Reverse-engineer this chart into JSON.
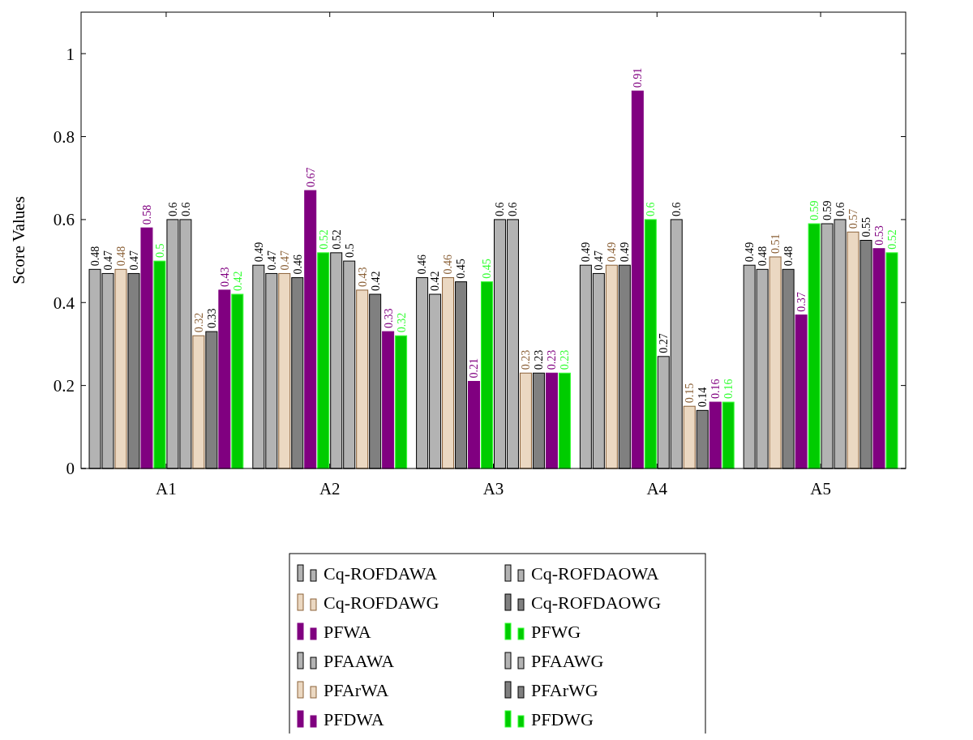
{
  "chart_data": {
    "type": "bar",
    "ylabel": "Score Values",
    "categories": [
      "A1",
      "A2",
      "A3",
      "A4",
      "A5"
    ],
    "ylim": [
      0,
      1.1
    ],
    "yticks": [
      0,
      0.2,
      0.4,
      0.6,
      0.8,
      1
    ],
    "grid": false,
    "legend": "bottom",
    "data_labels": true,
    "series": [
      {
        "name": "Cq-ROFDAWA",
        "color": "#b3b3b3",
        "values": [
          0.48,
          0.49,
          0.46,
          0.49,
          0.49
        ]
      },
      {
        "name": "Cq-ROFDAOWA",
        "color": "#b3b3b3",
        "values": [
          0.47,
          0.47,
          0.42,
          0.47,
          0.48
        ]
      },
      {
        "name": "Cq-ROFDAWG",
        "color": "#ebd8c2",
        "values": [
          0.48,
          0.47,
          0.46,
          0.49,
          0.51
        ]
      },
      {
        "name": "Cq-ROFDAOWG",
        "color": "#808080",
        "values": [
          0.47,
          0.46,
          0.45,
          0.49,
          0.48
        ]
      },
      {
        "name": "PFWA",
        "color": "#800080",
        "values": [
          0.58,
          0.67,
          0.21,
          0.91,
          0.37
        ]
      },
      {
        "name": "PFWG",
        "color": "#00cc00",
        "values": [
          0.5,
          0.52,
          0.45,
          0.6,
          0.59
        ]
      },
      {
        "name": "PFAAWA",
        "color": "#b3b3b3",
        "values": [
          0.6,
          0.52,
          0.6,
          0.27,
          0.59
        ]
      },
      {
        "name": "PFAAWG",
        "color": "#b3b3b3",
        "values": [
          0.6,
          0.5,
          0.6,
          0.6,
          0.6
        ]
      },
      {
        "name": "PFArWA",
        "color": "#ebd8c2",
        "values": [
          0.32,
          0.43,
          0.23,
          0.15,
          0.57
        ]
      },
      {
        "name": "PFArWG",
        "color": "#808080",
        "values": [
          0.33,
          0.42,
          0.23,
          0.14,
          0.55
        ]
      },
      {
        "name": "PFDWA",
        "color": "#800080",
        "values": [
          0.43,
          0.33,
          0.23,
          0.16,
          0.53
        ]
      },
      {
        "name": "PFDWG",
        "color": "#00cc00",
        "values": [
          0.42,
          0.32,
          0.23,
          0.16,
          0.52
        ]
      }
    ]
  }
}
